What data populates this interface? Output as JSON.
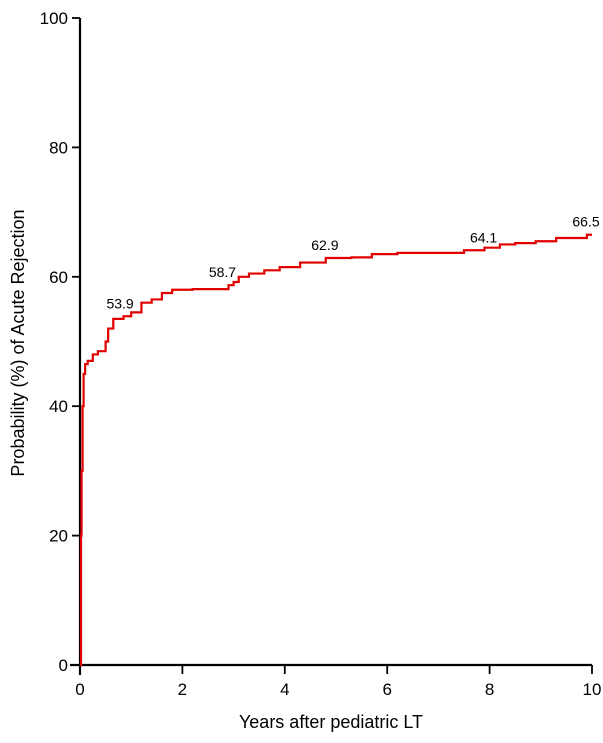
{
  "chart_data": {
    "type": "line",
    "title": "",
    "xlabel": "Years after pediatric LT",
    "ylabel": "Probability (%) of Acute Rejection",
    "xlim": [
      0,
      10
    ],
    "ylim": [
      0,
      100
    ],
    "x_ticks": [
      0,
      2,
      4,
      6,
      8,
      10
    ],
    "y_ticks": [
      0,
      20,
      40,
      60,
      80,
      100
    ],
    "grid": false,
    "legend": "none",
    "series": [
      {
        "color": "#e00000",
        "step": true,
        "x": [
          0,
          0.02,
          0.03,
          0.05,
          0.07,
          0.1,
          0.15,
          0.25,
          0.35,
          0.5,
          0.55,
          0.65,
          0.85,
          1.0,
          1.2,
          1.4,
          1.6,
          1.8,
          2.2,
          2.9,
          3.0,
          3.1,
          3.3,
          3.6,
          3.9,
          4.3,
          4.8,
          5.3,
          5.7,
          6.2,
          7.5,
          7.9,
          8.2,
          8.5,
          8.9,
          9.3,
          9.9,
          10.0
        ],
        "y": [
          0,
          20,
          30,
          40,
          45,
          46.5,
          47,
          48,
          48.5,
          50,
          52,
          53.5,
          53.9,
          54.5,
          56,
          56.5,
          57.5,
          58,
          58.1,
          58.7,
          59.2,
          60,
          60.5,
          61,
          61.5,
          62.2,
          62.9,
          63,
          63.5,
          63.7,
          64.1,
          64.5,
          65,
          65.2,
          65.5,
          66,
          66.5,
          66.5
        ]
      }
    ],
    "annotations": [
      {
        "x": 0.9,
        "y": 53.9,
        "text": "53.9"
      },
      {
        "x": 2.9,
        "y": 58.7,
        "text": "58.7"
      },
      {
        "x": 4.9,
        "y": 62.9,
        "text": "62.9"
      },
      {
        "x": 8.0,
        "y": 64.1,
        "text": "64.1"
      },
      {
        "x": 10.0,
        "y": 66.5,
        "text": "66.5"
      }
    ]
  }
}
